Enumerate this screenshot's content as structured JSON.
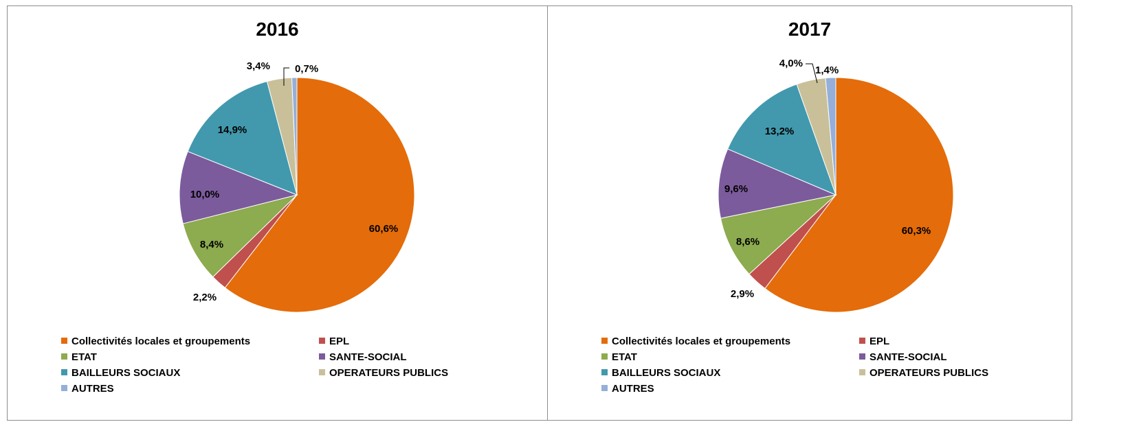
{
  "chart_data": [
    {
      "type": "pie",
      "title": "2016",
      "categories": [
        "Collectivités locales et groupements",
        "EPL",
        "ETAT",
        "SANTE-SOCIAL",
        "BAILLEURS SOCIAUX",
        "OPERATEURS PUBLICS",
        "AUTRES"
      ],
      "values": [
        60.6,
        2.2,
        8.4,
        10.0,
        14.9,
        3.4,
        0.7
      ],
      "value_labels": [
        "60,6%",
        "2,2%",
        "8,4%",
        "10,0%",
        "14,9%",
        "3,4%",
        "0,7%"
      ],
      "legend_position": "bottom"
    },
    {
      "type": "pie",
      "title": "2017",
      "categories": [
        "Collectivités locales et groupements",
        "EPL",
        "ETAT",
        "SANTE-SOCIAL",
        "BAILLEURS SOCIAUX",
        "OPERATEURS PUBLICS",
        "AUTRES"
      ],
      "values": [
        60.3,
        2.9,
        8.6,
        9.6,
        13.2,
        4.0,
        1.4
      ],
      "value_labels": [
        "60,3%",
        "2,9%",
        "8,6%",
        "9,6%",
        "13,2%",
        "4,0%",
        "1,4%"
      ],
      "legend_position": "bottom"
    }
  ],
  "colors": [
    "#E46C0A",
    "#C0504D",
    "#8DAB4F",
    "#7C5B9C",
    "#4299AD",
    "#C9C09A",
    "#95AFD8"
  ]
}
